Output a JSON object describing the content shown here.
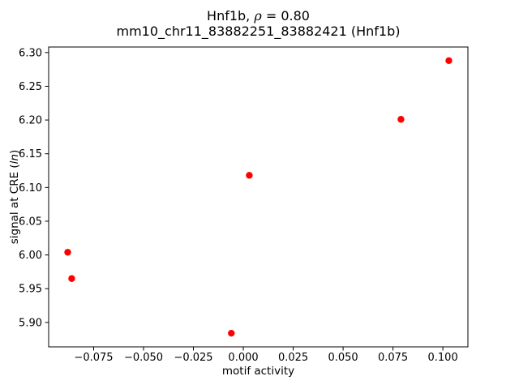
{
  "chart_data": {
    "type": "scatter",
    "title": {
      "line1_prefix": "Hnf1b, ",
      "rho": "ρ",
      "line1_suffix": " = 0.80",
      "line2": "mm10_chr11_83882251_83882421 (Hnf1b)"
    },
    "xlabel": "motif activity",
    "ylabel": {
      "prefix": "signal at CRE (",
      "italic": "ln",
      "suffix": ")"
    },
    "marker_color": "#ff0000",
    "axis_color": "#000000",
    "points": [
      {
        "x": -0.088,
        "y": 6.004
      },
      {
        "x": -0.086,
        "y": 5.965
      },
      {
        "x": -0.006,
        "y": 5.884
      },
      {
        "x": 0.003,
        "y": 6.118
      },
      {
        "x": 0.079,
        "y": 6.201
      },
      {
        "x": 0.103,
        "y": 6.288
      }
    ],
    "xlim": [
      -0.09755,
      0.11255
    ],
    "ylim": [
      5.8638,
      6.3082
    ],
    "xticks": [
      -0.075,
      -0.05,
      -0.025,
      0.0,
      0.025,
      0.05,
      0.075,
      0.1
    ],
    "xtick_labels": [
      "−0.075",
      "−0.050",
      "−0.025",
      "0.000",
      "0.025",
      "0.050",
      "0.075",
      "0.100"
    ],
    "yticks": [
      5.9,
      5.95,
      6.0,
      6.05,
      6.1,
      6.15,
      6.2,
      6.25,
      6.3
    ],
    "ytick_labels": [
      "5.90",
      "5.95",
      "6.00",
      "6.05",
      "6.10",
      "6.15",
      "6.20",
      "6.25",
      "6.30"
    ],
    "grid": false,
    "legend": "none"
  }
}
